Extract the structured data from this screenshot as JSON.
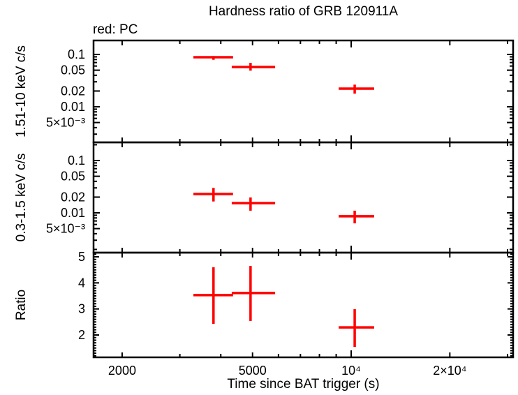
{
  "chart_data": {
    "type": "scatter",
    "subtype": "errorbar-cross-multipanel",
    "title": "Hardness ratio of GRB 120911A",
    "annotation": "red: PC",
    "annotation_meaning": "red points = PC mode data",
    "colors": {
      "data": "#ff0000",
      "axis": "#000000",
      "background": "#ffffff"
    },
    "x_axis": {
      "label": "Time since BAT trigger (s)",
      "scale": "log",
      "min": 1636,
      "max": 31200,
      "major_ticks": [
        {
          "value": 2000,
          "label": "2000"
        },
        {
          "value": 5000,
          "label": "5000"
        },
        {
          "value": 10000,
          "label": "10⁴"
        },
        {
          "value": 20000,
          "label": "2×10⁴"
        }
      ],
      "minor_ticks": [
        3000,
        4000,
        6000,
        7000,
        8000,
        9000,
        30000
      ]
    },
    "time_bins": [
      {
        "t": 3800,
        "t_lo": 3300,
        "t_hi": 4360
      },
      {
        "t": 4930,
        "t_lo": 4320,
        "t_hi": 5860
      },
      {
        "t": 10250,
        "t_lo": 9160,
        "t_hi": 11750
      }
    ],
    "panels": [
      {
        "id": "hard-rate",
        "ylabel": "1.51-10 keV c/s",
        "scale": "log",
        "ymin": 0.00209,
        "ymax": 0.1848,
        "major_ticks": [
          {
            "value": 0.1,
            "label": "0.1"
          },
          {
            "value": 0.05,
            "label": "0.05"
          },
          {
            "value": 0.02,
            "label": "0.02"
          },
          {
            "value": 0.01,
            "label": "0.01"
          },
          {
            "value": 0.005,
            "label": "5×10⁻³"
          }
        ],
        "points": [
          {
            "t": 3800,
            "t_lo": 3300,
            "t_hi": 4360,
            "v": 0.0885,
            "v_lo": 0.079,
            "v_hi": 0.093
          },
          {
            "t": 4930,
            "t_lo": 4320,
            "t_hi": 5860,
            "v": 0.0575,
            "v_lo": 0.049,
            "v_hi": 0.069
          },
          {
            "t": 10250,
            "t_lo": 9160,
            "t_hi": 11750,
            "v": 0.0222,
            "v_lo": 0.0178,
            "v_hi": 0.0265
          }
        ]
      },
      {
        "id": "soft-rate",
        "ylabel": "0.3-1.5 keV c/s",
        "scale": "log",
        "ymin": 0.001738,
        "ymax": 0.2222,
        "major_ticks": [
          {
            "value": 0.1,
            "label": "0.1"
          },
          {
            "value": 0.05,
            "label": "0.05"
          },
          {
            "value": 0.02,
            "label": "0.02"
          },
          {
            "value": 0.01,
            "label": "0.01"
          },
          {
            "value": 0.005,
            "label": "5×10⁻³"
          }
        ],
        "points": [
          {
            "t": 3800,
            "t_lo": 3300,
            "t_hi": 4360,
            "v": 0.0229,
            "v_lo": 0.0165,
            "v_hi": 0.03
          },
          {
            "t": 4930,
            "t_lo": 4320,
            "t_hi": 5860,
            "v": 0.0154,
            "v_lo": 0.011,
            "v_hi": 0.0197
          },
          {
            "t": 10250,
            "t_lo": 9160,
            "t_hi": 11750,
            "v": 0.0086,
            "v_lo": 0.0063,
            "v_hi": 0.011
          }
        ]
      },
      {
        "id": "ratio",
        "ylabel": "Ratio",
        "scale": "linear",
        "ymin": 1.143,
        "ymax": 5.161,
        "major_ticks": [
          {
            "value": 5,
            "label": "5"
          },
          {
            "value": 4,
            "label": "4"
          },
          {
            "value": 3,
            "label": "3"
          },
          {
            "value": 2,
            "label": "2"
          }
        ],
        "points": [
          {
            "t": 3800,
            "t_lo": 3300,
            "t_hi": 4360,
            "v": 3.53,
            "v_lo": 2.43,
            "v_hi": 4.6
          },
          {
            "t": 4930,
            "t_lo": 4320,
            "t_hi": 5860,
            "v": 3.61,
            "v_lo": 2.54,
            "v_hi": 4.65
          },
          {
            "t": 10250,
            "t_lo": 9160,
            "t_hi": 11750,
            "v": 2.29,
            "v_lo": 1.54,
            "v_hi": 2.99
          }
        ]
      }
    ]
  }
}
